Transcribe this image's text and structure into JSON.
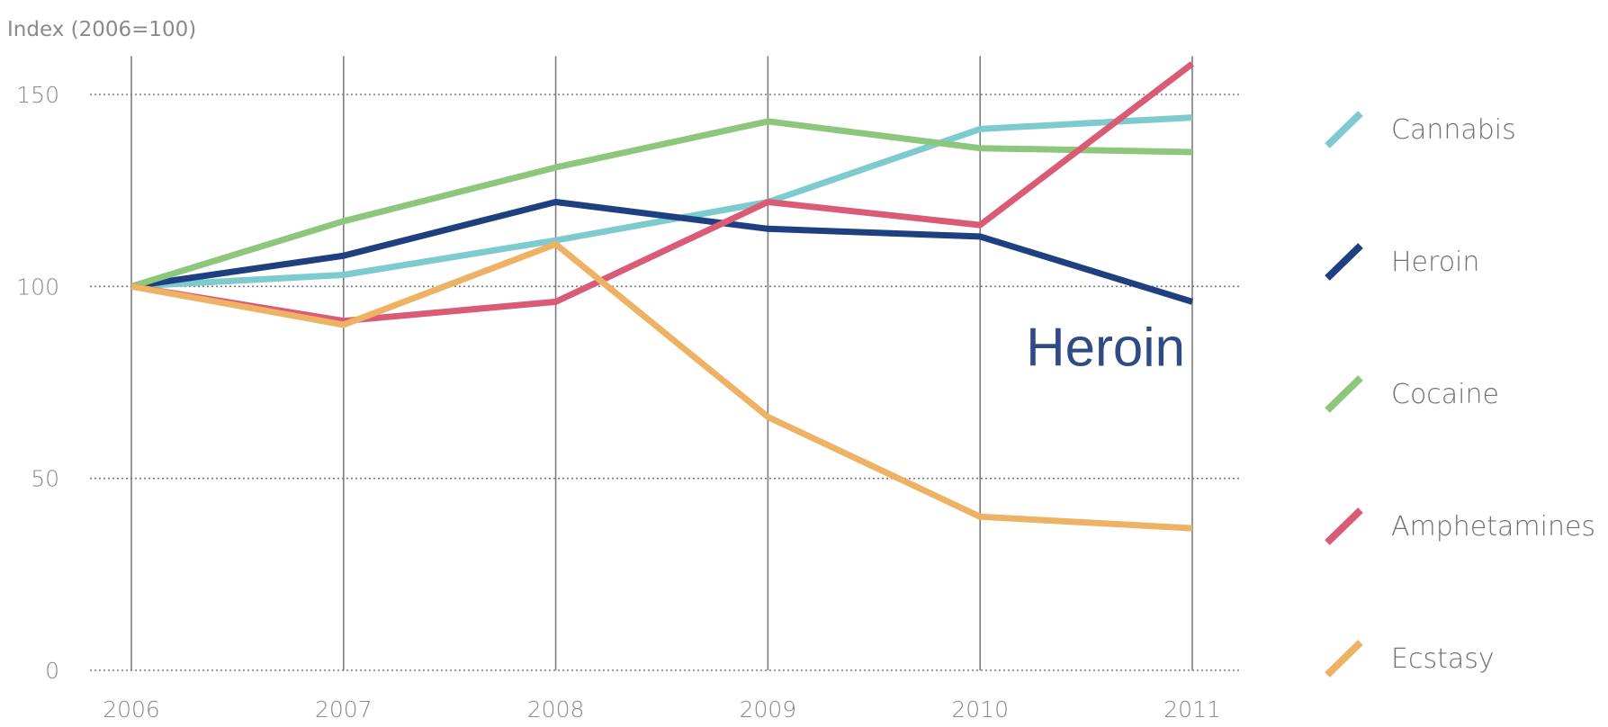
{
  "chart_data": {
    "type": "line",
    "ylabel": "Index (2006=100)",
    "xlabel": "",
    "categories": [
      "2006",
      "2007",
      "2008",
      "2009",
      "2010",
      "2011"
    ],
    "ylim": [
      0,
      160
    ],
    "yticks": [
      0,
      50,
      100,
      150
    ],
    "grid": {
      "horizontal": "dotted",
      "vertical": "solid"
    },
    "legend_position": "right",
    "series": [
      {
        "name": "Cannabis",
        "color": "#7ecbcf",
        "values": [
          100,
          103,
          112,
          122,
          141,
          144
        ]
      },
      {
        "name": "Heroin",
        "color": "#1e3f80",
        "values": [
          100,
          108,
          122,
          115,
          113,
          96
        ]
      },
      {
        "name": "Cocaine",
        "color": "#8cc77b",
        "values": [
          100,
          117,
          131,
          143,
          136,
          135
        ]
      },
      {
        "name": "Amphetamines",
        "color": "#d95b76",
        "values": [
          100,
          91,
          96,
          122,
          116,
          158
        ]
      },
      {
        "name": "Ecstasy",
        "color": "#eeb265",
        "values": [
          100,
          90,
          111,
          66,
          40,
          37
        ]
      }
    ],
    "annotations": [
      {
        "text": "Heroin",
        "color": "#2e4b86",
        "x": "2011",
        "y": 84
      }
    ]
  }
}
